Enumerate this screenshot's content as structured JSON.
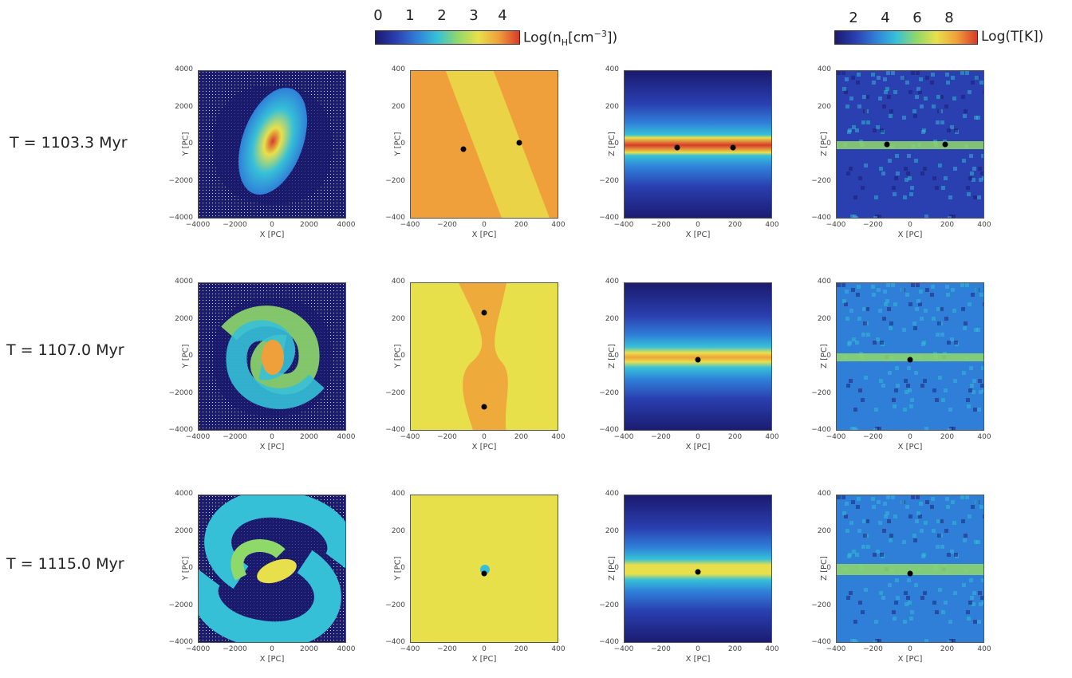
{
  "colorbars": {
    "density": {
      "ticks": [
        "0",
        "1",
        "2",
        "3",
        "4"
      ],
      "label": "Log(n",
      "label_sub": "H",
      "label_tail": "[cm",
      "label_sup": "−3",
      "label_end": "])"
    },
    "temperature": {
      "ticks": [
        "2",
        "4",
        "6",
        "8"
      ],
      "label": "Log(T[K])"
    }
  },
  "colormap": [
    "#1a1a6e",
    "#2a3fb0",
    "#2f7fd8",
    "#36c0d8",
    "#8fd86a",
    "#e8e04a",
    "#f0a03a",
    "#d83a2a"
  ],
  "rows": [
    {
      "label": "T = 1103.3 Myr"
    },
    {
      "label": "T = 1107.0 Myr"
    },
    {
      "label": "T = 1115.0 Myr"
    }
  ],
  "axes": {
    "large": {
      "ticks": [
        "4000",
        "2000",
        "0",
        "−2000",
        "−4000"
      ],
      "xticks": [
        "−4000",
        "−2000",
        "0",
        "2000",
        "4000"
      ]
    },
    "small": {
      "ticks": [
        "400",
        "200",
        "0",
        "−200",
        "−400"
      ],
      "xticks": [
        "−400",
        "−200",
        "0",
        "200",
        "400"
      ]
    },
    "xlabel": "X [PC]",
    "ylabel_xy": "Y [PC]",
    "ylabel_xz": "Z [PC]"
  }
}
